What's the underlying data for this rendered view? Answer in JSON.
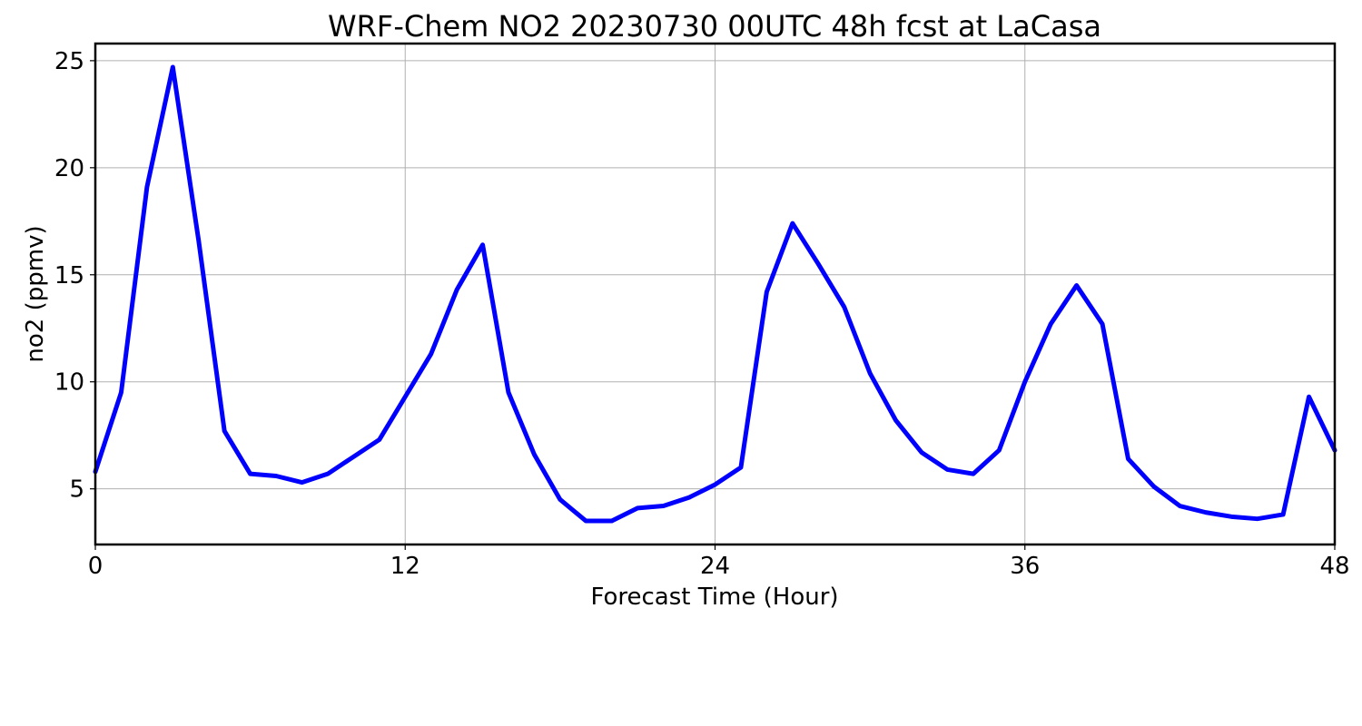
{
  "chart_data": {
    "type": "line",
    "title": "WRF-Chem NO2  20230730 00UTC 48h fcst at LaCasa",
    "xlabel": "Forecast Time (Hour)",
    "ylabel": "no2  (ppmv)",
    "xlim": [
      0,
      48
    ],
    "ylim": [
      2.4,
      25.8
    ],
    "xticks": [
      0,
      12,
      24,
      36,
      48
    ],
    "xtick_labels": [
      "0",
      "12",
      "24",
      "36",
      "48"
    ],
    "yticks": [
      5,
      10,
      15,
      20,
      25
    ],
    "ytick_labels": [
      "5",
      "10",
      "15",
      "20",
      "25"
    ],
    "grid": true,
    "x": [
      0,
      1,
      2,
      3,
      4,
      5,
      6,
      7,
      8,
      9,
      10,
      11,
      12,
      13,
      14,
      15,
      16,
      17,
      18,
      19,
      20,
      21,
      22,
      23,
      24,
      25,
      26,
      27,
      28,
      29,
      30,
      31,
      32,
      33,
      34,
      35,
      36,
      37,
      38,
      39,
      40,
      41,
      42,
      43,
      44,
      45,
      46,
      47,
      48
    ],
    "series": [
      {
        "color": "#0000ff",
        "values": [
          5.8,
          9.5,
          19.1,
          24.7,
          16.6,
          7.7,
          5.7,
          5.6,
          5.3,
          5.7,
          6.5,
          7.3,
          9.3,
          11.3,
          14.3,
          16.4,
          9.5,
          6.6,
          4.5,
          3.5,
          3.5,
          4.1,
          4.2,
          4.6,
          5.2,
          6.0,
          14.2,
          17.4,
          15.5,
          13.5,
          10.4,
          8.2,
          6.7,
          5.9,
          5.7,
          6.8,
          10.0,
          12.7,
          14.5,
          12.7,
          6.4,
          5.1,
          4.2,
          3.9,
          3.7,
          3.6,
          3.8,
          9.3,
          6.8
        ]
      }
    ]
  }
}
